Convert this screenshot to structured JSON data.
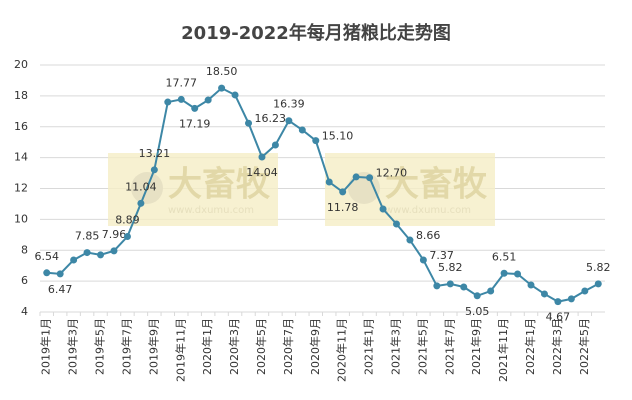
{
  "chart_data": {
    "type": "line",
    "title": "2019-2022年每月猪粮比走势图",
    "categories": [
      "2019年1月",
      null,
      "2019年3月",
      null,
      "2019年5月",
      null,
      "2019年7月",
      null,
      "2019年9月",
      null,
      "2019年11月",
      null,
      "2020年1月",
      null,
      "2020年3月",
      null,
      "2020年5月",
      null,
      "2020年7月",
      null,
      "2020年9月",
      null,
      "2020年11月",
      null,
      "2021年1月",
      null,
      "2021年3月",
      null,
      "2021年5月",
      null,
      "2021年7月",
      null,
      "2021年9月",
      null,
      "2021年11月",
      null,
      "2022年1月",
      null,
      "2022年3月",
      null,
      "2022年5月",
      null
    ],
    "series": [
      {
        "name": "猪粮比",
        "color": "#3d87a6",
        "values": [
          6.54,
          6.47,
          7.37,
          7.85,
          7.7,
          7.96,
          8.89,
          11.04,
          13.21,
          17.6,
          17.77,
          17.19,
          17.73,
          18.5,
          18.06,
          16.23,
          14.04,
          14.82,
          16.39,
          15.79,
          15.1,
          12.42,
          11.78,
          12.75,
          12.7,
          10.67,
          9.7,
          8.66,
          7.37,
          5.69,
          5.82,
          5.62,
          5.05,
          5.36,
          6.51,
          6.46,
          5.75,
          5.17,
          4.67,
          4.85,
          5.36,
          5.82
        ],
        "value_labels": [
          "6.54",
          "6.47",
          null,
          "7.85",
          null,
          "7.96",
          "8.89",
          "11.04",
          "13.21",
          null,
          "17.77",
          "17.19",
          null,
          "18.50",
          null,
          "16.23",
          "14.04",
          null,
          "16.39",
          null,
          "15.10",
          null,
          "11.78",
          null,
          "12.70",
          null,
          null,
          "8.66",
          "7.37",
          null,
          "5.82",
          null,
          "5.05",
          null,
          "6.51",
          null,
          null,
          null,
          "4.67",
          null,
          null,
          "5.82"
        ]
      }
    ],
    "ylim": [
      4,
      20
    ],
    "yticks": [
      4,
      6,
      8,
      10,
      12,
      14,
      16,
      18,
      20
    ],
    "grid": true,
    "watermark": {
      "brand": "大畜牧",
      "url": "www.dxumu.com"
    }
  }
}
